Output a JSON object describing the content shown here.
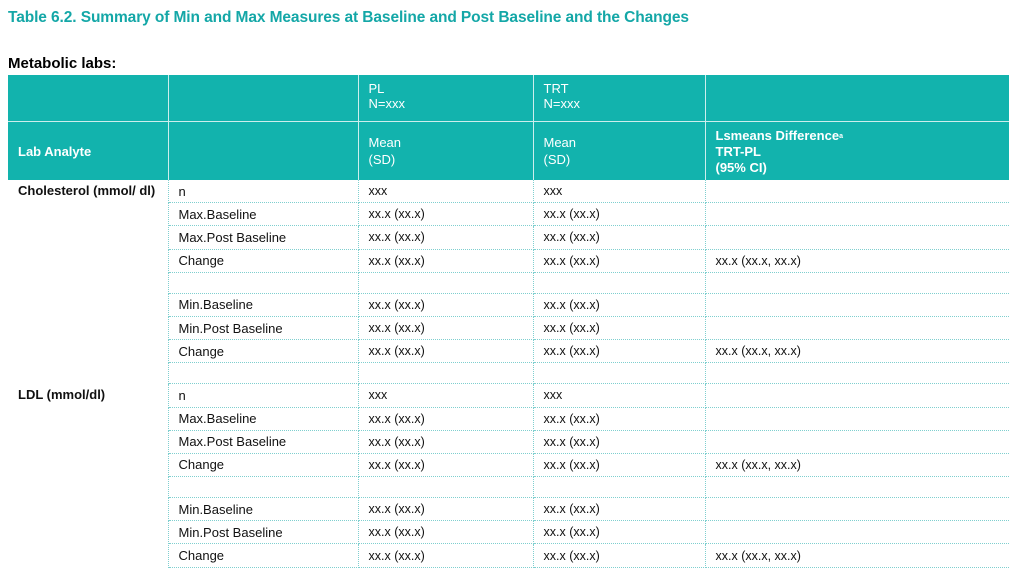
{
  "title": "Table 6.2. Summary of Min and Max Measures at Baseline and Post Baseline and the Changes",
  "subtitle": "Metabolic labs:",
  "header": {
    "pl_line1": "PL",
    "pl_line2": "N=xxx",
    "trt_line1": "TRT",
    "trt_line2": "N=xxx",
    "lab_analyte": "Lab Analyte",
    "mean_line1": "Mean",
    "mean_line2": "(SD)",
    "lsm_line1": "Lsmeans Difference",
    "lsm_sup": "a",
    "lsm_line2": "TRT-PL",
    "lsm_line3": "(95% CI)"
  },
  "groups": [
    {
      "analyte": "Cholesterol (mmol/ dl)",
      "rows": [
        {
          "label": "n",
          "pl": "xxx",
          "trt": "xxx",
          "diff": ""
        },
        {
          "label": "Max.Baseline",
          "pl": "xx.x (xx.x)",
          "trt": "xx.x (xx.x)",
          "diff": ""
        },
        {
          "label": "Max.Post Baseline",
          "pl": "xx.x (xx.x)",
          "trt": "xx.x (xx.x)",
          "diff": ""
        },
        {
          "label": "Change",
          "pl": "xx.x (xx.x)",
          "trt": "xx.x (xx.x)",
          "diff": "xx.x (xx.x, xx.x)"
        },
        {
          "label": "",
          "pl": "",
          "trt": "",
          "diff": ""
        },
        {
          "label": "Min.Baseline",
          "pl": "xx.x (xx.x)",
          "trt": "xx.x (xx.x)",
          "diff": ""
        },
        {
          "label": "Min.Post Baseline",
          "pl": "xx.x (xx.x)",
          "trt": "xx.x (xx.x)",
          "diff": ""
        },
        {
          "label": "Change",
          "pl": "xx.x (xx.x)",
          "trt": "xx.x (xx.x)",
          "diff": "xx.x (xx.x, xx.x)"
        },
        {
          "label": "",
          "pl": "",
          "trt": "",
          "diff": ""
        }
      ]
    },
    {
      "analyte": "LDL (mmol/dl)",
      "rows": [
        {
          "label": "n",
          "pl": "xxx",
          "trt": "xxx",
          "diff": ""
        },
        {
          "label": "Max.Baseline",
          "pl": "xx.x (xx.x)",
          "trt": "xx.x (xx.x)",
          "diff": ""
        },
        {
          "label": "Max.Post Baseline",
          "pl": "xx.x (xx.x)",
          "trt": "xx.x (xx.x)",
          "diff": ""
        },
        {
          "label": "Change",
          "pl": "xx.x (xx.x)",
          "trt": "xx.x (xx.x)",
          "diff": "xx.x (xx.x, xx.x)"
        },
        {
          "label": "",
          "pl": "",
          "trt": "",
          "diff": ""
        },
        {
          "label": "Min.Baseline",
          "pl": "xx.x (xx.x)",
          "trt": "xx.x (xx.x)",
          "diff": ""
        },
        {
          "label": "Min.Post Baseline",
          "pl": "xx.x (xx.x)",
          "trt": "xx.x (xx.x)",
          "diff": ""
        },
        {
          "label": "Change",
          "pl": "xx.x (xx.x)",
          "trt": "xx.x (xx.x)",
          "diff": "xx.x (xx.x, xx.x)"
        }
      ]
    }
  ]
}
